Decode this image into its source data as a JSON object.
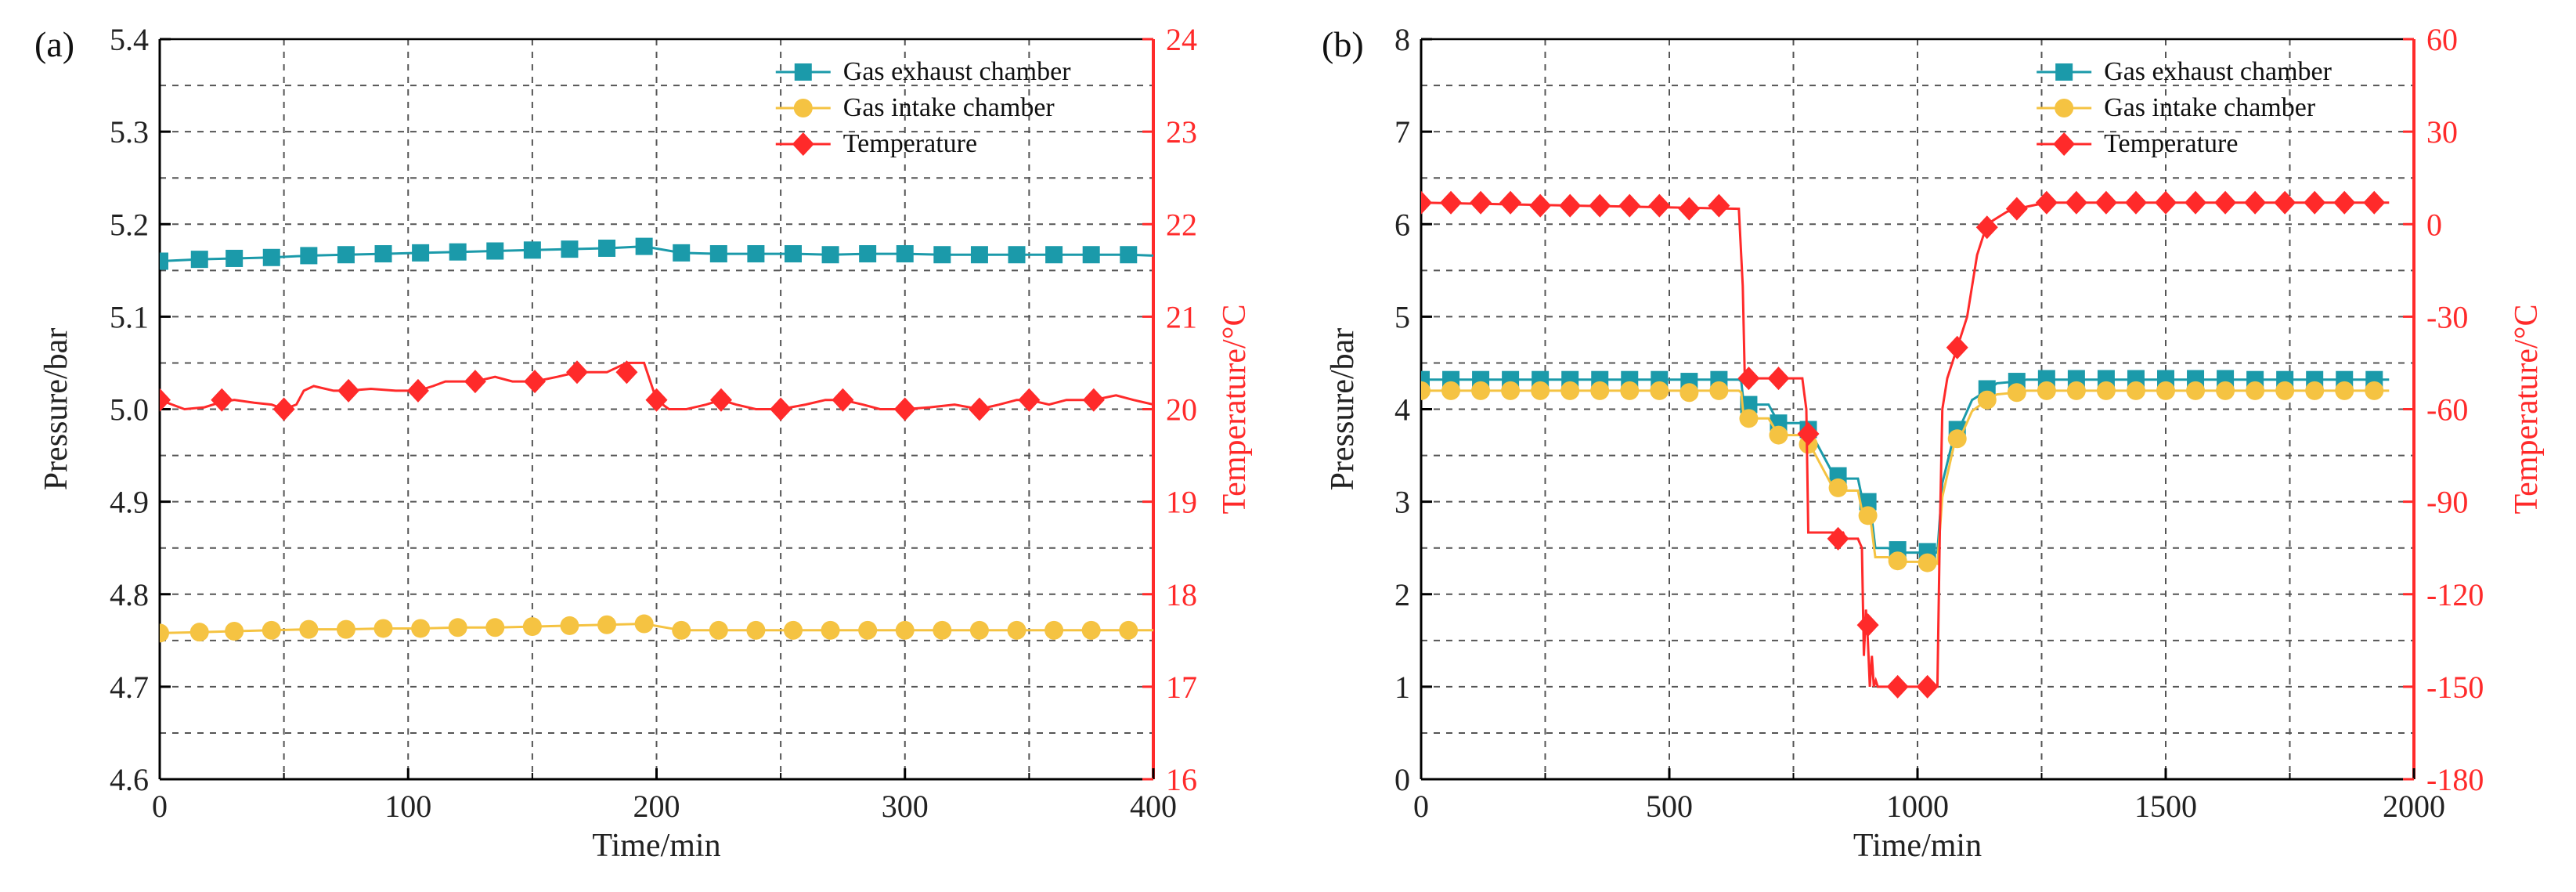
{
  "colors": {
    "exhaust": "#1b9aaa",
    "intake": "#f5c342",
    "temperature": "#ff2a2a",
    "axis": "#000000",
    "grid": "#555555"
  },
  "chart_data": [
    {
      "type": "line",
      "panel_label": "(a)",
      "xlabel": "Time/min",
      "ylabel": "Pressure/bar",
      "y2label": "Temperature/°C",
      "xlim": [
        0,
        400
      ],
      "ylim": [
        4.6,
        5.4
      ],
      "y2lim": [
        16,
        24
      ],
      "xticks": [
        "0",
        "100",
        "200",
        "300",
        "400"
      ],
      "yticks": [
        "4.6",
        "4.7",
        "4.8",
        "4.9",
        "5.0",
        "5.1",
        "5.2",
        "5.3",
        "5.4"
      ],
      "y2ticks": [
        "16",
        "17",
        "18",
        "19",
        "20",
        "21",
        "22",
        "23",
        "24"
      ],
      "legend_position": "top-right",
      "legend": [
        "Gas exhaust chamber",
        "Gas intake chamber",
        "Temperature"
      ],
      "series": [
        {
          "name": "Gas exhaust chamber",
          "axis": "left",
          "marker": "square",
          "color_key": "exhaust",
          "x": [
            0,
            16,
            30,
            45,
            60,
            75,
            90,
            105,
            120,
            135,
            150,
            165,
            180,
            195,
            210,
            225,
            240,
            255,
            270,
            285,
            300,
            315,
            330,
            345,
            360,
            375,
            390,
            400
          ],
          "y": [
            5.16,
            5.162,
            5.163,
            5.164,
            5.166,
            5.167,
            5.168,
            5.169,
            5.17,
            5.171,
            5.172,
            5.173,
            5.174,
            5.176,
            5.169,
            5.168,
            5.168,
            5.168,
            5.167,
            5.168,
            5.168,
            5.167,
            5.167,
            5.167,
            5.167,
            5.167,
            5.167,
            5.166
          ],
          "marker_x": [
            0,
            16,
            30,
            45,
            60,
            75,
            90,
            105,
            120,
            135,
            150,
            165,
            180,
            195,
            210,
            225,
            240,
            255,
            270,
            285,
            300,
            315,
            330,
            345,
            360,
            375,
            390
          ]
        },
        {
          "name": "Gas intake chamber",
          "axis": "left",
          "marker": "circle",
          "color_key": "intake",
          "x": [
            0,
            16,
            30,
            45,
            60,
            75,
            90,
            105,
            120,
            135,
            150,
            165,
            180,
            195,
            210,
            225,
            240,
            255,
            270,
            285,
            300,
            315,
            330,
            345,
            360,
            375,
            390,
            400
          ],
          "y": [
            4.758,
            4.759,
            4.76,
            4.761,
            4.762,
            4.762,
            4.763,
            4.763,
            4.764,
            4.764,
            4.765,
            4.766,
            4.767,
            4.768,
            4.761,
            4.761,
            4.761,
            4.761,
            4.761,
            4.761,
            4.761,
            4.761,
            4.761,
            4.761,
            4.761,
            4.761,
            4.761,
            4.761
          ],
          "marker_x": [
            0,
            16,
            30,
            45,
            60,
            75,
            90,
            105,
            120,
            135,
            150,
            165,
            180,
            195,
            210,
            225,
            240,
            255,
            270,
            285,
            300,
            315,
            330,
            345,
            360,
            375,
            390
          ]
        },
        {
          "name": "Temperature",
          "axis": "right",
          "marker": "diamond",
          "color_key": "temperature",
          "x": [
            0,
            5,
            10,
            18,
            25,
            30,
            38,
            45,
            50,
            55,
            58,
            62,
            70,
            76,
            85,
            95,
            104,
            110,
            115,
            120,
            127,
            135,
            142,
            151,
            160,
            168,
            175,
            180,
            188,
            195,
            200,
            205,
            212,
            220,
            226,
            232,
            240,
            250,
            260,
            268,
            275,
            283,
            290,
            300,
            310,
            320,
            330,
            338,
            345,
            350,
            358,
            365,
            376,
            385,
            392,
            400
          ],
          "y": [
            20.1,
            20.05,
            20.0,
            20.02,
            20.08,
            20.1,
            20.07,
            20.05,
            20.0,
            20.05,
            20.2,
            20.25,
            20.2,
            20.2,
            20.22,
            20.2,
            20.2,
            20.25,
            20.3,
            20.3,
            20.3,
            20.35,
            20.3,
            20.3,
            20.35,
            20.4,
            20.4,
            20.4,
            20.5,
            20.5,
            20.1,
            20.0,
            20.0,
            20.05,
            20.1,
            20.05,
            20.0,
            20.0,
            20.05,
            20.1,
            20.1,
            20.05,
            20.0,
            20.0,
            20.02,
            20.05,
            20.0,
            20.05,
            20.1,
            20.1,
            20.05,
            20.1,
            20.1,
            20.15,
            20.1,
            20.05
          ],
          "marker_x": [
            0,
            25,
            50,
            76,
            104,
            127,
            151,
            168,
            188,
            200,
            226,
            250,
            275,
            300,
            330,
            350,
            376
          ],
          "marker_y": [
            20.1,
            20.1,
            20.0,
            20.2,
            20.2,
            20.3,
            20.3,
            20.4,
            20.4,
            20.1,
            20.1,
            20.0,
            20.1,
            20.0,
            20.0,
            20.1,
            20.1
          ]
        }
      ]
    },
    {
      "type": "line",
      "panel_label": "(b)",
      "xlabel": "Time/min",
      "ylabel": "Pressure/bar",
      "y2label": "Temperature/°C",
      "xlim": [
        0,
        2000
      ],
      "ylim": [
        0,
        8
      ],
      "y2lim": [
        -180,
        60
      ],
      "xticks": [
        "0",
        "500",
        "1000",
        "1500",
        "2000"
      ],
      "yticks": [
        "0",
        "1",
        "2",
        "3",
        "4",
        "5",
        "6",
        "7",
        "8"
      ],
      "y2ticks": [
        "-180",
        "-150",
        "-120",
        "-90",
        "-60",
        "-30",
        "0",
        "30",
        "60"
      ],
      "legend_position": "top-right",
      "legend": [
        "Gas exhaust chamber",
        "Gas intake chamber",
        "Temperature"
      ],
      "series": [
        {
          "name": "Gas exhaust chamber",
          "axis": "left",
          "marker": "square",
          "color_key": "exhaust",
          "x": [
            0,
            640,
            645,
            650,
            700,
            720,
            770,
            780,
            830,
            840,
            880,
            890,
            905,
            915,
            940,
            960,
            1030,
            1040,
            1050,
            1075,
            1085,
            1110,
            1140,
            1160,
            1200,
            1220,
            1950
          ],
          "y": [
            4.32,
            4.32,
            4.3,
            4.05,
            4.05,
            3.85,
            3.85,
            3.8,
            3.3,
            3.25,
            3.25,
            3.0,
            2.95,
            2.5,
            2.5,
            2.45,
            2.45,
            2.45,
            3.2,
            3.75,
            3.8,
            4.1,
            4.2,
            4.28,
            4.3,
            4.32,
            4.32
          ],
          "marker_x": [
            0,
            60,
            120,
            180,
            240,
            300,
            360,
            420,
            480,
            540,
            600,
            660,
            720,
            780,
            840,
            900,
            960,
            1020,
            1080,
            1140,
            1200,
            1260,
            1320,
            1380,
            1440,
            1500,
            1560,
            1620,
            1680,
            1740,
            1800,
            1860,
            1920
          ],
          "marker_y": [
            4.32,
            4.32,
            4.32,
            4.32,
            4.32,
            4.32,
            4.32,
            4.32,
            4.32,
            4.3,
            4.32,
            4.05,
            3.85,
            3.78,
            3.28,
            3.0,
            2.48,
            2.46,
            3.78,
            4.22,
            4.3,
            4.33,
            4.33,
            4.33,
            4.33,
            4.33,
            4.33,
            4.33,
            4.32,
            4.32,
            4.32,
            4.32,
            4.32
          ]
        },
        {
          "name": "Gas intake chamber",
          "axis": "left",
          "marker": "circle",
          "color_key": "intake",
          "x": [
            0,
            640,
            645,
            650,
            700,
            720,
            770,
            780,
            830,
            840,
            880,
            890,
            905,
            915,
            940,
            960,
            1030,
            1040,
            1050,
            1075,
            1085,
            1110,
            1140,
            1160,
            1200,
            1220,
            1950
          ],
          "y": [
            4.2,
            4.2,
            4.18,
            3.9,
            3.9,
            3.72,
            3.72,
            3.65,
            3.15,
            3.12,
            3.12,
            2.85,
            2.82,
            2.4,
            2.4,
            2.35,
            2.35,
            2.33,
            3.05,
            3.65,
            3.68,
            3.98,
            4.1,
            4.16,
            4.18,
            4.2,
            4.2
          ],
          "marker_x": [
            0,
            60,
            120,
            180,
            240,
            300,
            360,
            420,
            480,
            540,
            600,
            660,
            720,
            780,
            840,
            900,
            960,
            1020,
            1080,
            1140,
            1200,
            1260,
            1320,
            1380,
            1440,
            1500,
            1560,
            1620,
            1680,
            1740,
            1800,
            1860,
            1920
          ],
          "marker_y": [
            4.2,
            4.2,
            4.2,
            4.2,
            4.2,
            4.2,
            4.2,
            4.2,
            4.2,
            4.18,
            4.2,
            3.9,
            3.72,
            3.62,
            3.15,
            2.85,
            2.36,
            2.34,
            3.68,
            4.1,
            4.18,
            4.2,
            4.2,
            4.2,
            4.2,
            4.2,
            4.2,
            4.2,
            4.2,
            4.2,
            4.2,
            4.2,
            4.2
          ]
        },
        {
          "name": "Temperature",
          "axis": "right",
          "marker": "diamond",
          "color_key": "temperature",
          "x": [
            0,
            640,
            648,
            652,
            660,
            700,
            768,
            772,
            776,
            780,
            790,
            850,
            855,
            880,
            888,
            892,
            896,
            900,
            904,
            908,
            912,
            916,
            920,
            935,
            1030,
            1040,
            1045,
            1050,
            1060,
            1080,
            1100,
            1120,
            1140,
            1160,
            1180,
            1200,
            1230,
            1260,
            1300,
            1400,
            1500,
            1600,
            1700,
            1800,
            1900,
            1950
          ],
          "y": [
            7,
            5,
            -20,
            -50,
            -50,
            -50,
            -50,
            -55,
            -60,
            -100,
            -100,
            -100,
            -102,
            -102,
            -105,
            -140,
            -125,
            -135,
            -150,
            -140,
            -150,
            -148,
            -150,
            -150,
            -150,
            -150,
            -100,
            -60,
            -50,
            -40,
            -30,
            -10,
            0,
            2,
            4,
            5,
            6,
            7,
            7,
            7,
            7,
            7,
            7,
            7,
            7,
            7
          ],
          "marker_x": [
            0,
            60,
            120,
            180,
            240,
            300,
            360,
            420,
            480,
            540,
            600,
            660,
            720,
            780,
            840,
            900,
            960,
            1020,
            1080,
            1140,
            1200,
            1260,
            1320,
            1380,
            1440,
            1500,
            1560,
            1620,
            1680,
            1740,
            1800,
            1860,
            1920
          ],
          "marker_y": [
            7,
            7,
            7,
            7,
            6,
            6,
            6,
            6,
            6,
            5,
            6,
            -50,
            -50,
            -68,
            -102,
            -130,
            -150,
            -150,
            -40,
            -1,
            5,
            7,
            7,
            7,
            7,
            7,
            7,
            7,
            7,
            7,
            7,
            7,
            7
          ]
        }
      ]
    }
  ]
}
